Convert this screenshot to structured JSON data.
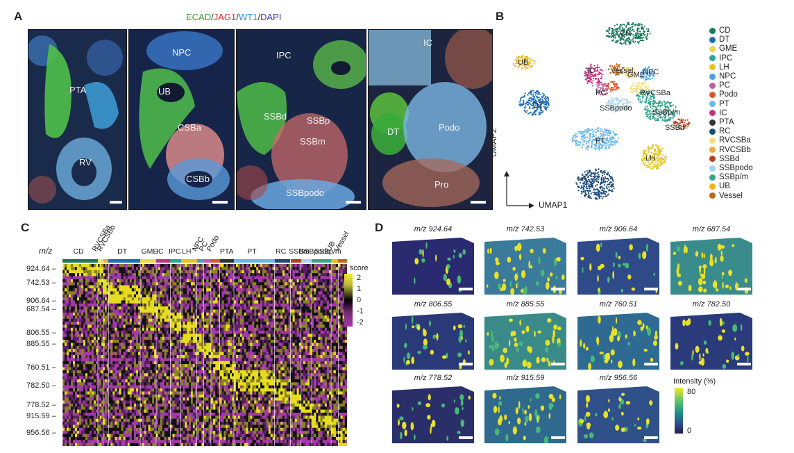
{
  "panel_a": {
    "label": "A",
    "stain_parts": [
      {
        "text": "ECAD",
        "color": "#2ca02c"
      },
      {
        "text": "/",
        "color": "#333333"
      },
      {
        "text": "JAG1",
        "color": "#d62728"
      },
      {
        "text": "/",
        "color": "#333333"
      },
      {
        "text": "WT1",
        "color": "#1f9bd8"
      },
      {
        "text": "/",
        "color": "#333333"
      },
      {
        "text": "DAPI",
        "color": "#3b3bb0"
      }
    ],
    "images": [
      {
        "labels": [
          "PTA",
          "RV"
        ]
      },
      {
        "labels": [
          "NPC",
          "UB",
          "CSBa",
          "CSBb"
        ]
      },
      {
        "labels": [
          "IPC",
          "SSBd",
          "SSBp",
          "SSBm",
          "SSBpodo"
        ]
      },
      {
        "labels": [
          "IC",
          "DT",
          "Podo",
          "Pro"
        ]
      }
    ]
  },
  "panel_b": {
    "label": "B",
    "x_axis": "UMAP1",
    "y_axis": "UMAP2",
    "clusters": [
      {
        "name": "CD",
        "color": "#1b7a5c"
      },
      {
        "name": "DT",
        "color": "#1f6fb4"
      },
      {
        "name": "GME",
        "color": "#f1d54a"
      },
      {
        "name": "IPC",
        "color": "#2aa79b"
      },
      {
        "name": "LH",
        "color": "#e8c21c"
      },
      {
        "name": "NPC",
        "color": "#4aa0dc"
      },
      {
        "name": "PC",
        "color": "#c0609a"
      },
      {
        "name": "Podo",
        "color": "#d9572b"
      },
      {
        "name": "PT",
        "color": "#6ab7e8"
      },
      {
        "name": "IC",
        "color": "#c2327e"
      },
      {
        "name": "PTA",
        "color": "#333333"
      },
      {
        "name": "RC",
        "color": "#1d4b7a"
      },
      {
        "name": "RVCSBa",
        "color": "#f5df7b"
      },
      {
        "name": "RVCSBb",
        "color": "#f0a93a"
      },
      {
        "name": "SSBd",
        "color": "#b5421f"
      },
      {
        "name": "SSBpodo",
        "color": "#a8d3ee"
      },
      {
        "name": "SSBp/m",
        "color": "#3aa58c"
      },
      {
        "name": "UB",
        "color": "#f0b51a"
      },
      {
        "name": "Vessel",
        "color": "#b86a1c"
      }
    ],
    "cluster_labels": [
      "PT",
      "UB",
      "DT",
      "LH",
      "CD",
      "IC",
      "PC",
      "Vessel",
      "GME",
      "NPC",
      "RVCSBa",
      "SSBpodo",
      "SSBp/m",
      "SSBd"
    ]
  },
  "panel_c": {
    "label": "C",
    "y_title": "m/z",
    "columns": [
      {
        "name": "CD",
        "color": "#1b7a5c"
      },
      {
        "name": "RVCSBa",
        "color": "#f5df7b"
      },
      {
        "name": "RVCSBb",
        "color": "#f0a93a"
      },
      {
        "name": "DT",
        "color": "#1f6fb4"
      },
      {
        "name": "GME",
        "color": "#f1d54a"
      },
      {
        "name": "IC",
        "color": "#c2327e"
      },
      {
        "name": "IPC",
        "color": "#2aa79b"
      },
      {
        "name": "LH",
        "color": "#e8c21c"
      },
      {
        "name": "NPC",
        "color": "#4aa0dc"
      },
      {
        "name": "PC",
        "color": "#c0609a"
      },
      {
        "name": "Podo",
        "color": "#d9572b"
      },
      {
        "name": "PTA",
        "color": "#333333"
      },
      {
        "name": "PT",
        "color": "#6ab7e8"
      },
      {
        "name": "RC",
        "color": "#1d4b7a"
      },
      {
        "name": "SSBm",
        "color": "#b5421f"
      },
      {
        "name": "SSBpodo",
        "color": "#a8d3ee"
      },
      {
        "name": "SSBp/m",
        "color": "#3aa58c"
      },
      {
        "name": "UB",
        "color": "#f0b51a"
      },
      {
        "name": "Vessel",
        "color": "#b86a1c"
      }
    ],
    "row_labels": [
      "924.64",
      "742.53",
      "906.64",
      "687.54",
      "806.55",
      "885.55",
      "760.51",
      "782.50",
      "778.52",
      "915.59",
      "956.56"
    ],
    "colorbar_title": "Z score",
    "colorbar_ticks": [
      "2",
      "1",
      "0",
      "-1",
      "-2"
    ]
  },
  "panel_d": {
    "label": "D",
    "images": [
      {
        "mz": "924.64"
      },
      {
        "mz": "742.53"
      },
      {
        "mz": "906.64"
      },
      {
        "mz": "687.54"
      },
      {
        "mz": "806.55"
      },
      {
        "mz": "885.55"
      },
      {
        "mz": "760.51"
      },
      {
        "mz": "782.50"
      },
      {
        "mz": "778.52"
      },
      {
        "mz": "915.59"
      },
      {
        "mz": "956.56"
      }
    ],
    "mz_prefix": "m/z",
    "colorbar_title": "Intensity (%)",
    "colorbar_max": "80",
    "colorbar_min": "0"
  }
}
